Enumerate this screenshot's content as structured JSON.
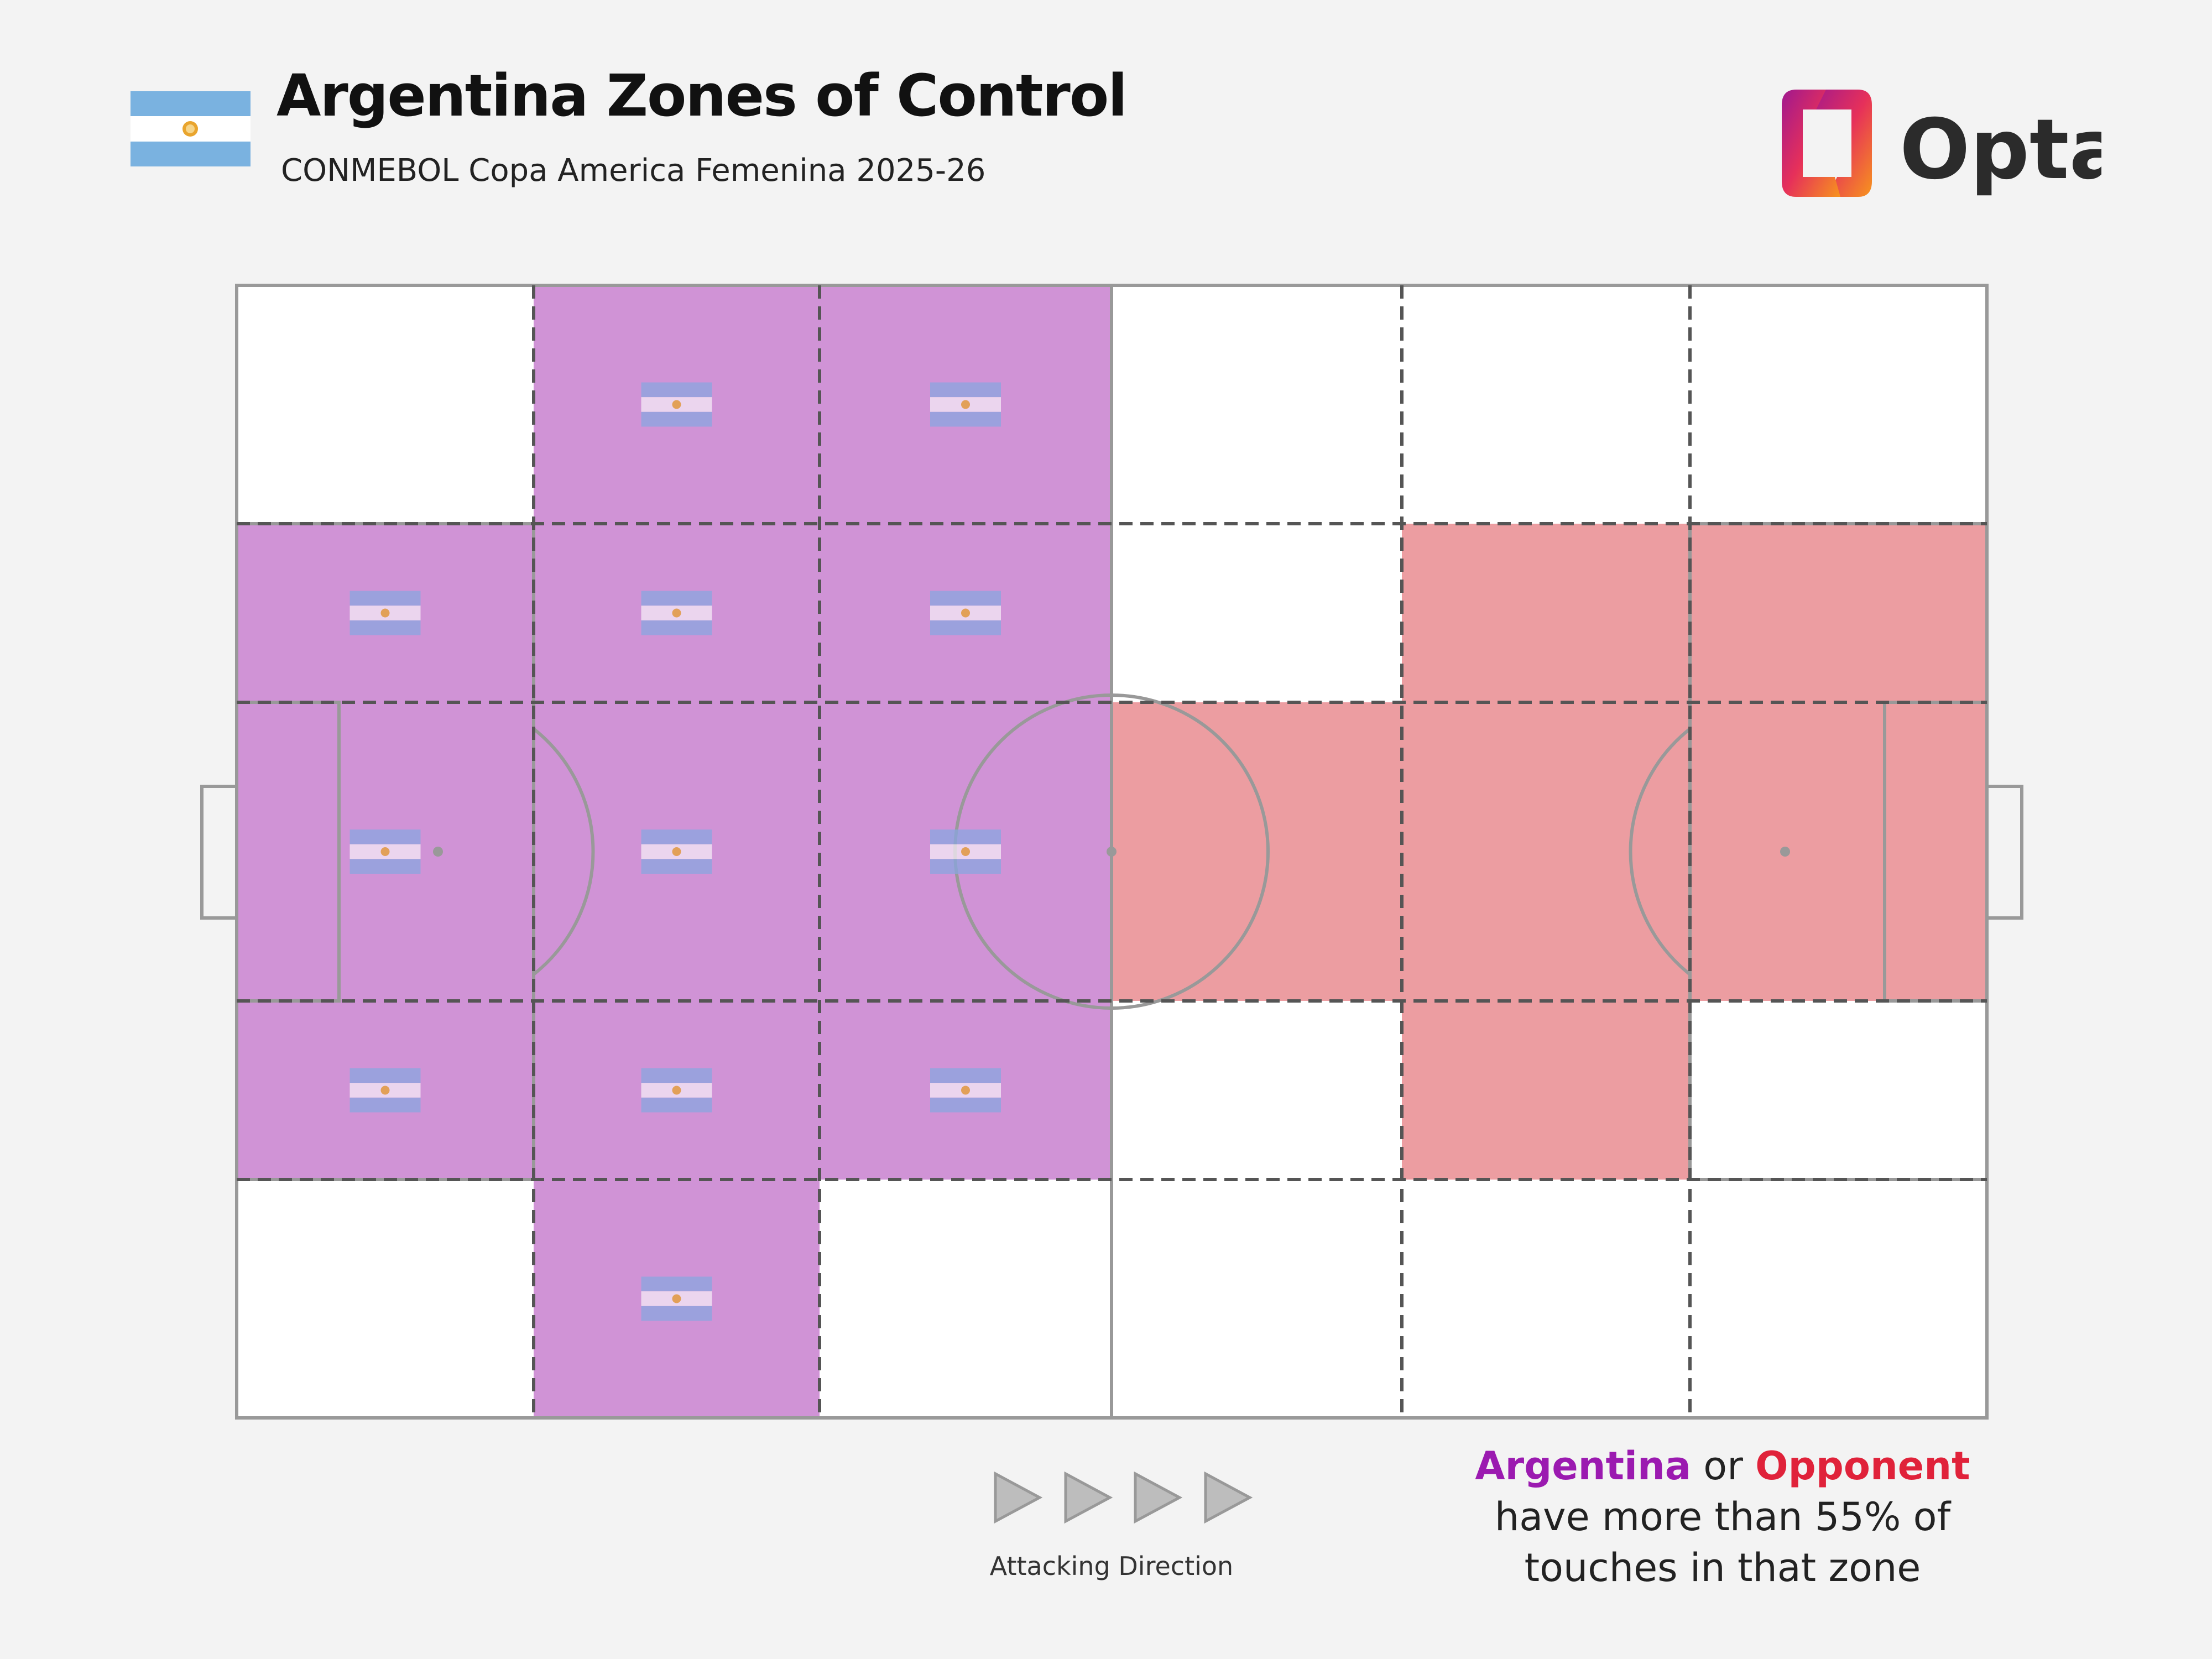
{
  "header": {
    "title": "Argentina Zones of Control",
    "subtitle": "CONMEBOL Copa America Femenina 2025-26",
    "flag_icon": "argentina-flag-icon",
    "logo_text": "Opta"
  },
  "colors": {
    "argentina_zone": "#d093d6",
    "opponent_zone": "#ec9da1",
    "argentina_text": "#9b1ab0",
    "opponent_text": "#e0223a",
    "pitch_line": "#999999",
    "zone_divider": "#555555",
    "flag_blue": "#7ab2e0",
    "flag_sun": "#e9a52e"
  },
  "direction": {
    "label": "Attacking Direction",
    "arrow_icon": "play-triangle-icon",
    "arrow_count": 4
  },
  "legend": {
    "team_a": "Argentina",
    "connector": " or ",
    "team_b": "Opponent",
    "line2": "have more than 55% of",
    "line3": "touches in that zone"
  },
  "chart_data": {
    "type": "heatmap",
    "title": "Argentina Zones of Control",
    "subtitle": "CONMEBOL Copa America Femenina 2025-26",
    "grid": {
      "columns": 6,
      "rows": 5
    },
    "note": "Rows listed top to bottom, columns left (own goal) to right (attacking goal). A = Argentina, O = Opponent, null = neither above 55%",
    "zones": [
      [
        null,
        "A",
        "A",
        null,
        null,
        null
      ],
      [
        "A",
        "A",
        "A",
        null,
        "O",
        "O"
      ],
      [
        "A",
        "A",
        "A",
        "O",
        "O",
        "O"
      ],
      [
        "A",
        "A",
        "A",
        null,
        "O",
        null
      ],
      [
        null,
        "A",
        null,
        null,
        null,
        null
      ]
    ],
    "threshold_percent": 55,
    "legend": [
      "Argentina",
      "Opponent"
    ]
  }
}
